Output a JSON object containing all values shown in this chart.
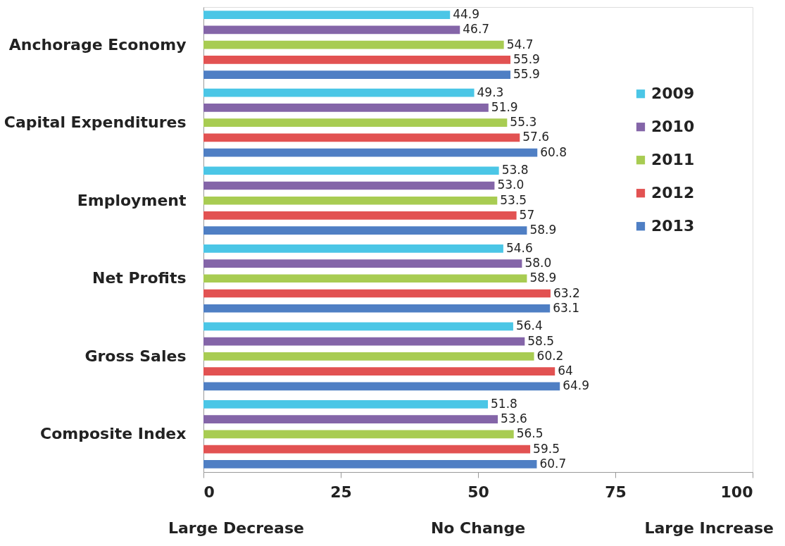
{
  "chart_data": {
    "type": "bar",
    "orientation": "horizontal",
    "categories": [
      "Anchorage Economy",
      "Capital Expenditures",
      "Employment",
      "Net Profits",
      "Gross Sales",
      "Composite Index"
    ],
    "series": [
      {
        "name": "2009",
        "color": "#4bc6e6",
        "values": [
          44.9,
          49.3,
          53.8,
          54.6,
          56.4,
          51.8
        ],
        "value_labels": [
          "44.9",
          "49.3",
          "53.8",
          "54.6",
          "56.4",
          "51.8"
        ]
      },
      {
        "name": "2010",
        "color": "#8465a8",
        "values": [
          46.7,
          51.9,
          53.0,
          58.0,
          58.5,
          53.6
        ],
        "value_labels": [
          "46.7",
          "51.9",
          "53.0",
          "58.0",
          "58.5",
          "53.6"
        ]
      },
      {
        "name": "2011",
        "color": "#a8cc52",
        "values": [
          54.7,
          55.3,
          53.5,
          58.9,
          60.2,
          56.5
        ],
        "value_labels": [
          "54.7",
          "55.3",
          "53.5",
          "58.9",
          "60.2",
          "56.5"
        ]
      },
      {
        "name": "2012",
        "color": "#e25252",
        "values": [
          55.9,
          57.6,
          57,
          63.2,
          64,
          59.5
        ],
        "value_labels": [
          "55.9",
          "57.6",
          "57",
          "63.2",
          "64",
          "59.5"
        ]
      },
      {
        "name": "2013",
        "color": "#4f7fc4",
        "values": [
          55.9,
          60.8,
          58.9,
          63.1,
          64.9,
          60.7
        ],
        "value_labels": [
          "55.9",
          "60.8",
          "58.9",
          "63.1",
          "64.9",
          "60.7"
        ]
      }
    ],
    "xlim": [
      0,
      100
    ],
    "xticks": [
      0,
      25,
      50,
      75,
      100
    ],
    "grid": false,
    "legend": "right",
    "annotations": [
      "Large Decrease",
      "No Change",
      "Large Increase"
    ]
  }
}
